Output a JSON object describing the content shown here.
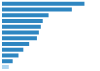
{
  "chart_data": {
    "type": "bar",
    "orientation": "horizontal",
    "categories": [
      null,
      null,
      null,
      null,
      null,
      null,
      null,
      null,
      null,
      null,
      null,
      null
    ],
    "values": [
      85,
      72,
      48,
      42,
      40,
      38,
      36,
      28,
      22,
      17,
      11,
      7
    ],
    "colors": [
      "#2e86c1",
      "#2e86c1",
      "#2e86c1",
      "#2e86c1",
      "#2e86c1",
      "#2e86c1",
      "#2e86c1",
      "#2e86c1",
      "#2e86c1",
      "#2e86c1",
      "#2e86c1",
      "#aed6f1"
    ],
    "xlim": [
      0,
      100
    ],
    "tick_labels": false
  }
}
